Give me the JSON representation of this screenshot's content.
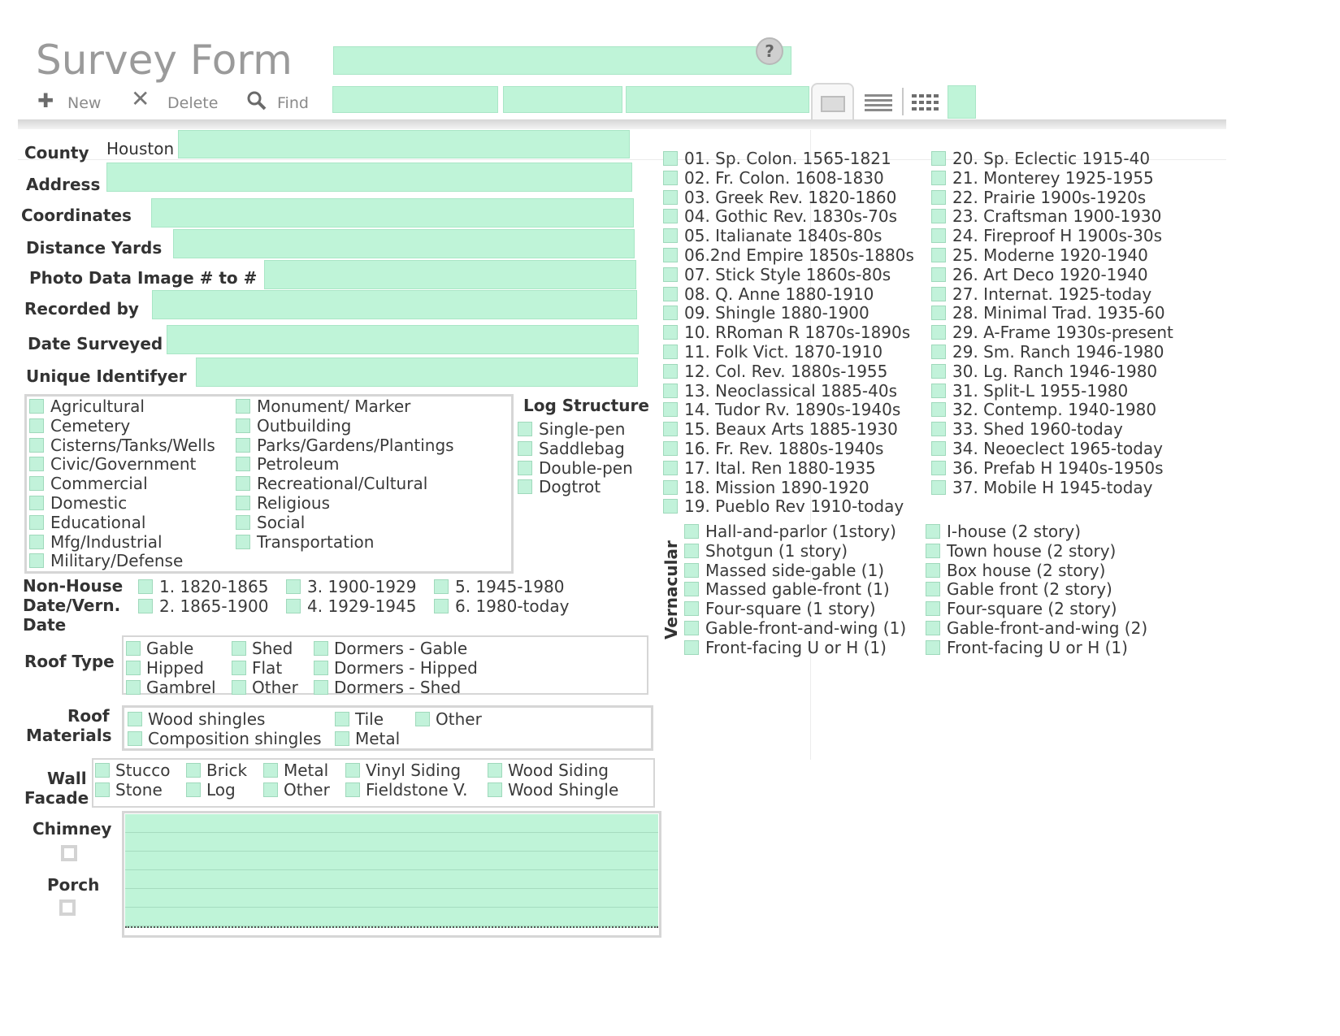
{
  "header": {
    "title": "Survey Form",
    "toolbar": {
      "new_label": "New",
      "delete_label": "Delete",
      "find_label": "Find"
    },
    "icons": {
      "new": "plus-icon",
      "delete": "x-icon",
      "find": "magnifier-icon",
      "help": "question-icon"
    }
  },
  "fields": {
    "county": {
      "label": "County",
      "value": "Houston"
    },
    "address": {
      "label": "Address"
    },
    "coordinates": {
      "label": "Coordinates"
    },
    "distance": {
      "label": "Distance Yards"
    },
    "photo": {
      "label": "Photo Data Image # to #"
    },
    "recorded": {
      "label": "Recorded by"
    },
    "date": {
      "label": "Date Surveyed"
    },
    "uid": {
      "label": "Unique Identifyer"
    }
  },
  "categories": {
    "col1": [
      "Agricultural",
      "Cemetery",
      "Cisterns/Tanks/Wells",
      "Civic/Government",
      "Commercial",
      "Domestic",
      "Educational",
      "Mfg/Industrial",
      "Military/Defense"
    ],
    "col2": [
      "Monument/ Marker",
      "Outbuilding",
      "Parks/Gardens/Plantings",
      "Petroleum",
      "Recreational/Cultural",
      "Religious",
      "Social",
      "Transportation"
    ]
  },
  "log": {
    "title": "Log Structure",
    "items": [
      "Single-pen",
      "Saddlebag",
      "Double-pen",
      "Dogtrot"
    ]
  },
  "nonhouse": {
    "label_line1": "Non-House",
    "label_line2": "Date/Vern.",
    "label_line3": "Date",
    "items": [
      "1. 1820-1865",
      "2. 1865-1900",
      "3. 1900-1929",
      "4. 1929-1945",
      "5. 1945-1980",
      "6. 1980-today"
    ]
  },
  "roof_type": {
    "label": "Roof Type",
    "items": [
      "Gable",
      "Hipped",
      "Gambrel",
      "Shed",
      "Flat",
      "Other",
      "Dormers - Gable",
      "Dormers - Hipped",
      "Dormers - Shed"
    ]
  },
  "roof_materials": {
    "label_line1": "Roof",
    "label_line2": "Materials",
    "items": [
      "Wood shingles",
      "Composition shingles",
      "Tile",
      "Metal",
      "Other"
    ]
  },
  "wall": {
    "label_line1": "Wall",
    "label_line2": "Facade",
    "items": [
      "Stucco",
      "Stone",
      "Brick",
      "Log",
      "Metal",
      "Other",
      "Vinyl Siding",
      "Fieldstone V.",
      "Wood Siding",
      "Wood Shingle"
    ]
  },
  "chimney": {
    "label": "Chimney"
  },
  "porch": {
    "label": "Porch"
  },
  "styles": {
    "col1": [
      "01. Sp. Colon. 1565-1821",
      "02. Fr. Colon. 1608-1830",
      "03. Greek Rev. 1820-1860",
      "04. Gothic Rev. 1830s-70s",
      "05. Italianate 1840s-80s",
      "06.2nd Empire 1850s-1880s",
      "07. Stick Style 1860s-80s",
      "08. Q. Anne 1880-1910",
      "09. Shingle 1880-1900",
      "10. RRoman R 1870s-1890s",
      "11. Folk Vict. 1870-1910",
      "12. Col. Rev. 1880s-1955",
      "13. Neoclassical 1885-40s",
      "14. Tudor Rv. 1890s-1940s",
      "15. Beaux Arts 1885-1930",
      "16. Fr. Rev. 1880s-1940s",
      "17. Ital. Ren 1880-1935",
      "18. Mission 1890-1920",
      "19. Pueblo Rev 1910-today"
    ],
    "col2": [
      "20. Sp. Eclectic 1915-40",
      "21. Monterey 1925-1955",
      "22. Prairie 1900s-1920s",
      "23. Craftsman 1900-1930",
      "24. Fireproof H 1900s-30s",
      "25. Moderne 1920-1940",
      "26. Art Deco 1920-1940",
      "27. Internat. 1925-today",
      "28. Minimal Trad. 1935-60",
      "29. A-Frame 1930s-present",
      "29. Sm. Ranch  1946-1980",
      "30. Lg. Ranch 1946-1980",
      "31. Split-L 1955-1980",
      "32. Contemp. 1940-1980",
      "33. Shed 1960-today",
      "34. Neoeclect 1965-today",
      "36. Prefab H 1940s-1950s",
      "37. Mobile H 1945-today"
    ]
  },
  "vernacular": {
    "title": "Vernacular",
    "col1": [
      "Hall-and-parlor (1story)",
      "Shotgun (1 story)",
      "Massed side-gable (1)",
      "Massed gable-front (1)",
      "Four-square (1 story)",
      "Gable-front-and-wing (1)",
      "Front-facing U or H (1)"
    ],
    "col2": [
      "I-house (2 story)",
      "Town house (2 story)",
      "Box house (2 story)",
      "Gable front (2 story)",
      "Four-square (2 story)",
      "Gable-front-and-wing (2)",
      "Front-facing U or H (1)"
    ]
  },
  "colors": {
    "field": "#bff4d8",
    "border": "#d6d6d6",
    "title": "#9a9a9a"
  }
}
